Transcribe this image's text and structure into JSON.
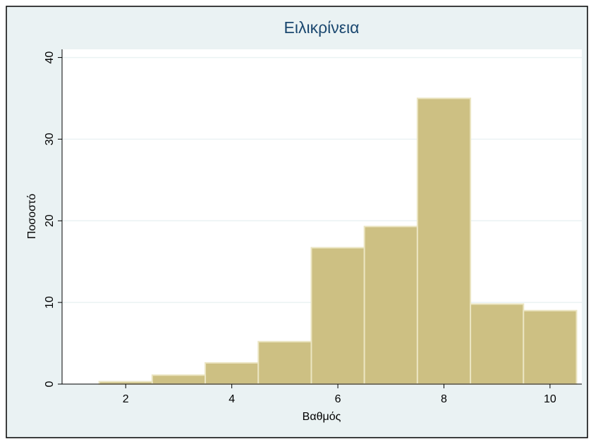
{
  "chart_data": {
    "type": "histogram",
    "title": "Ειλικρίνεια",
    "xlabel": "Βαθμός",
    "ylabel": "Ποσοστό",
    "bins": [
      1.5,
      2.5,
      3.5,
      4.5,
      5.5,
      6.5,
      7.5,
      8.5,
      9.5,
      10.5
    ],
    "values": [
      0.3,
      1.1,
      2.6,
      5.2,
      16.7,
      19.3,
      35,
      9.8,
      9.0
    ],
    "color": "#cdc083",
    "xlim": [
      0.8,
      10.6
    ],
    "xticks": [
      2,
      4,
      6,
      8,
      10
    ],
    "ylim": [
      0,
      41
    ],
    "yticks": [
      0,
      10,
      20,
      30,
      40
    ],
    "grid": true
  }
}
